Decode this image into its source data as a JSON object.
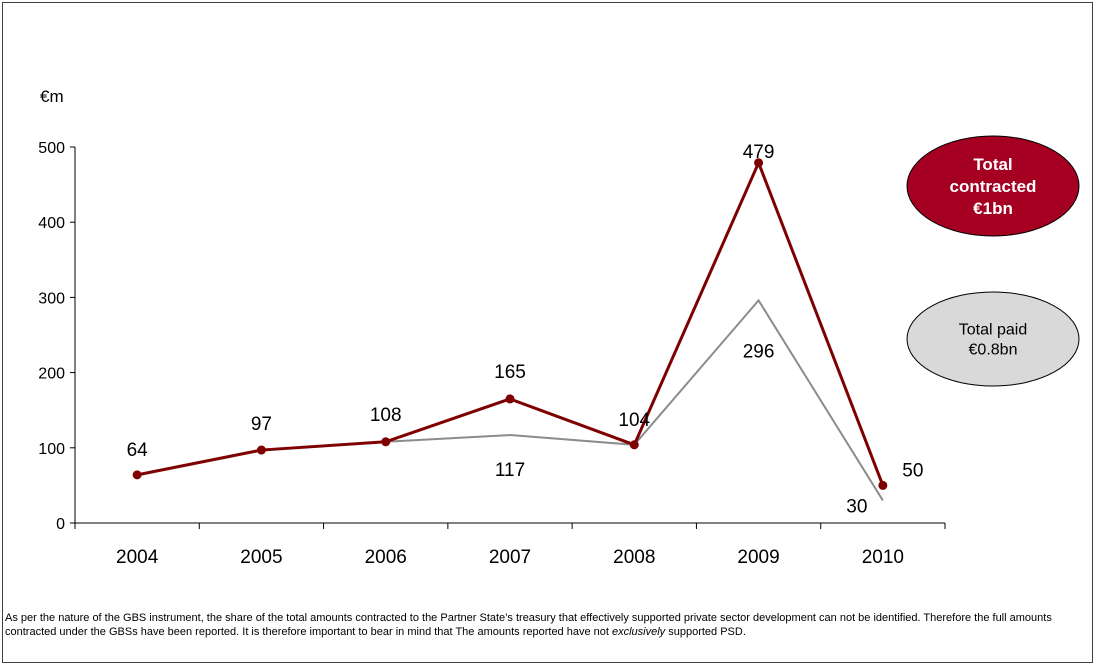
{
  "chart_data": {
    "type": "line",
    "ylabel": "€m",
    "ylim": [
      0,
      500
    ],
    "yticks": [
      0,
      100,
      200,
      300,
      400,
      500
    ],
    "categories": [
      "2004",
      "2005",
      "2006",
      "2007",
      "2008",
      "2009",
      "2010"
    ],
    "grid": false,
    "series": [
      {
        "key": "contracted",
        "values": [
          64,
          97,
          108,
          165,
          104,
          479,
          50
        ],
        "labels": [
          "64",
          "97",
          "108",
          "165",
          "104",
          "479",
          "50"
        ],
        "color": "#7f0000"
      },
      {
        "key": "paid",
        "values": [
          64,
          97,
          108,
          117,
          104,
          296,
          30
        ],
        "labels": [
          "",
          "",
          "",
          "117",
          "",
          "296",
          "30"
        ],
        "color": "#8c8c8c"
      }
    ],
    "callouts": [
      {
        "key": "contracted",
        "lines": [
          "Total",
          "contracted",
          "€1bn"
        ],
        "fill": "#a50021",
        "text_color": "#ffffff"
      },
      {
        "key": "paid",
        "lines": [
          "Total paid",
          "€0.8bn"
        ],
        "fill": "#d9d9d9",
        "text_color": "#000000"
      }
    ]
  },
  "note": {
    "text_1": "As per the nature of the GBS instrument, the share of the total amounts contracted to the Partner State’s treasury that effectively supported private sector development can not be identified. Therefore the full amounts contracted under the GBSs have been reported. It is therefore important to bear in mind that The amounts reported have not ",
    "emphasis": "exclusively",
    "text_2": " supported PSD."
  }
}
